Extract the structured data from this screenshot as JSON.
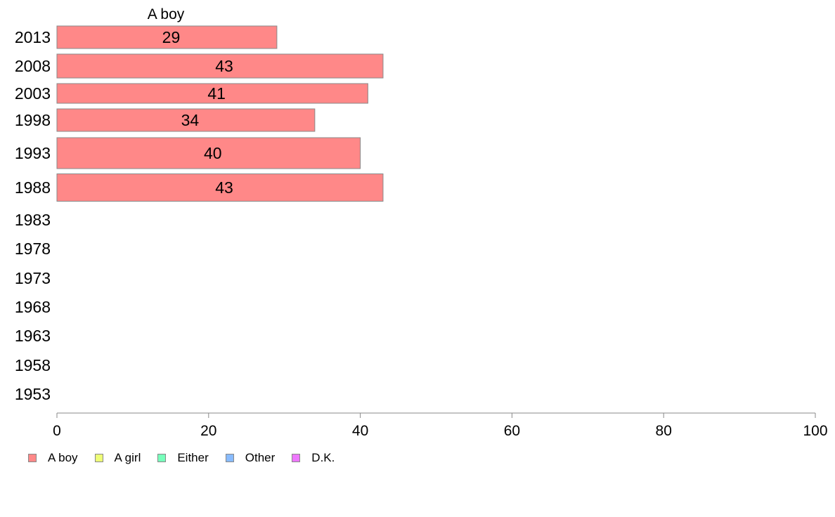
{
  "chart_data": {
    "type": "bar",
    "orientation": "horizontal",
    "categories": [
      "2013",
      "2008",
      "2003",
      "1998",
      "1993",
      "1988",
      "1983",
      "1978",
      "1973",
      "1968",
      "1963",
      "1958",
      "1953"
    ],
    "series": [
      {
        "name": "A boy",
        "color": "#FF8888",
        "values": [
          29,
          43,
          41,
          34,
          40,
          43,
          null,
          null,
          null,
          null,
          null,
          null,
          null
        ]
      }
    ],
    "data_labels": [
      "29",
      "43",
      "41",
      "34",
      "40",
      "43"
    ],
    "panel_title": "A boy",
    "xlim": [
      0,
      100
    ],
    "x_ticks": [
      "0",
      "20",
      "40",
      "60",
      "80",
      "100"
    ],
    "grid": false,
    "legend_position": "bottom-left",
    "legend": [
      {
        "label": "A boy",
        "color": "#FF8888"
      },
      {
        "label": "A girl",
        "color": "#EEFF77"
      },
      {
        "label": "Either",
        "color": "#77FFBB"
      },
      {
        "label": "Other",
        "color": "#88BBFF"
      },
      {
        "label": "D.K.",
        "color": "#EE77FF"
      }
    ]
  }
}
